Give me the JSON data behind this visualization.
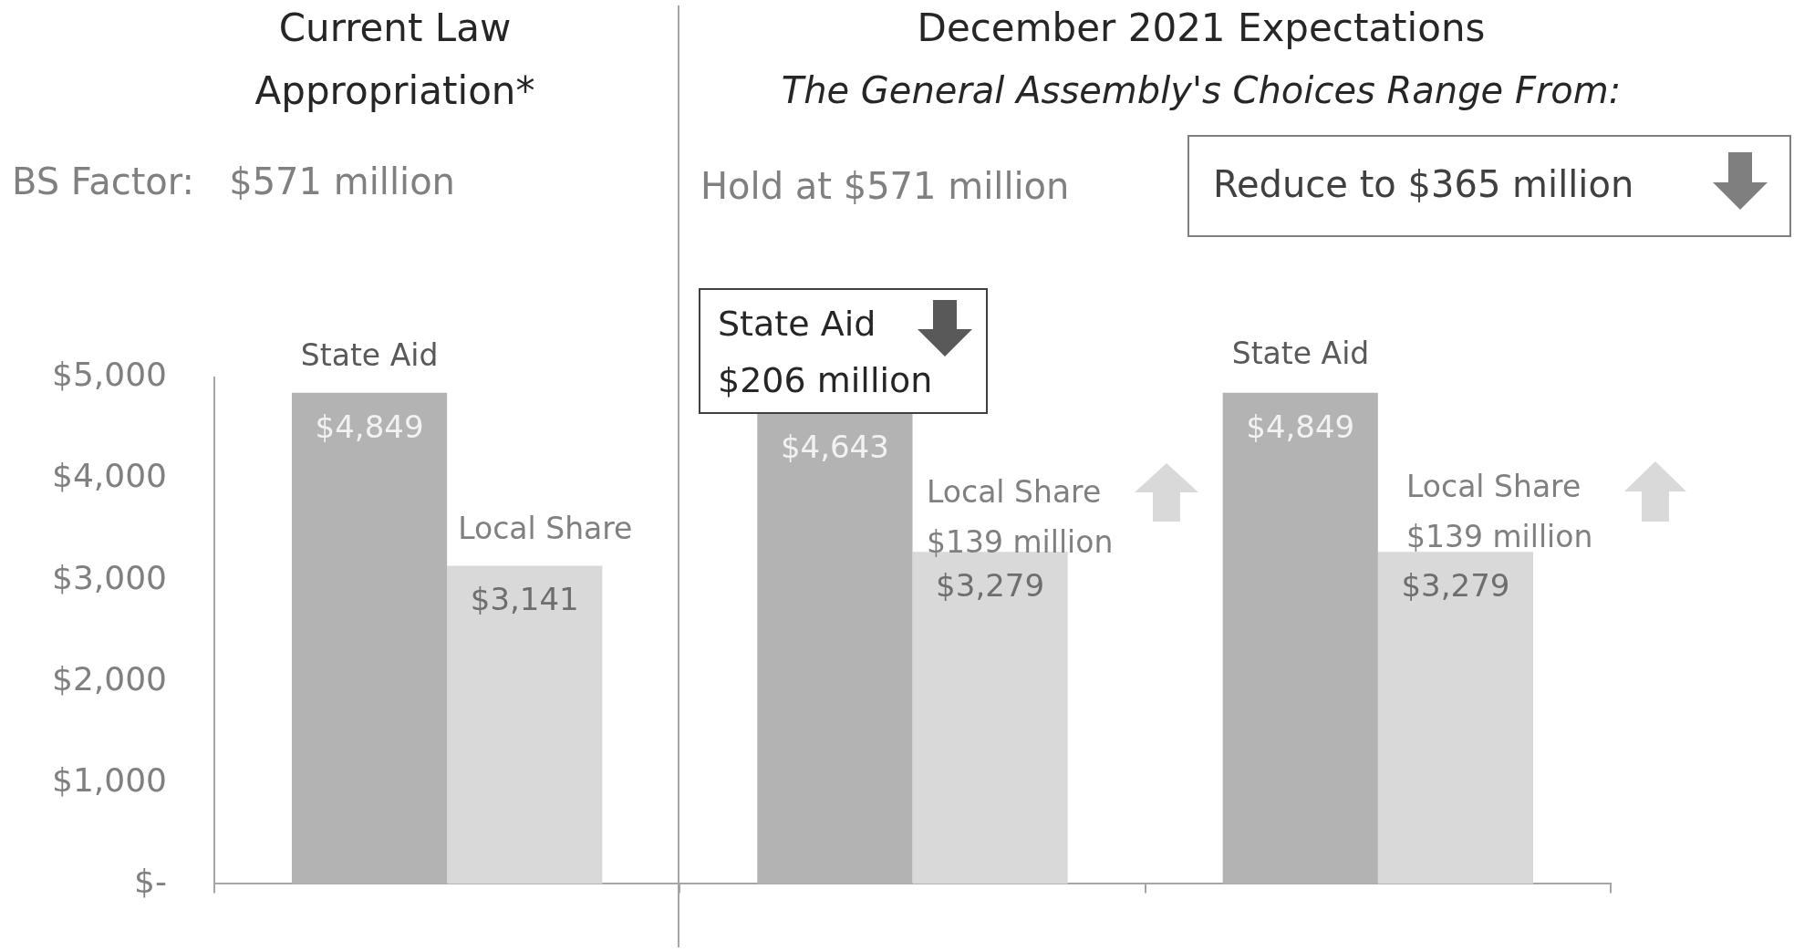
{
  "chart_data": {
    "type": "bar",
    "categories": [
      null,
      null,
      null
    ],
    "series": [
      {
        "name": "State Aid",
        "color": "#b3b3b3",
        "values": [
          4849,
          4643,
          4849
        ],
        "value_labels": [
          "$4,849",
          "$4,643",
          "$4,849"
        ]
      },
      {
        "name": "Local Share",
        "color": "#d9d9d9",
        "values": [
          3141,
          3279,
          3279
        ],
        "value_labels": [
          "$3,141",
          "$3,279",
          "$3,279"
        ]
      }
    ],
    "ylim": [
      0,
      5000
    ],
    "yticks": [
      {
        "value": 0,
        "label": "$-"
      },
      {
        "value": 1000,
        "label": "$1,000"
      },
      {
        "value": 2000,
        "label": "$2,000"
      },
      {
        "value": 3000,
        "label": "$3,000"
      },
      {
        "value": 4000,
        "label": "$4,000"
      },
      {
        "value": 5000,
        "label": "$5,000"
      }
    ],
    "legend": false,
    "annotations": [
      "Current Law",
      "Appropriation*",
      "December 2021 Expectations",
      "The General Assembly's Choices Range From:",
      "BS Factor:   $571 million",
      "Hold at $571 million",
      "Reduce to $365 million",
      "State Aid",
      "$206 million",
      "Local Share",
      "$139 million",
      "State Aid",
      "Local Share",
      "$139 million"
    ]
  }
}
